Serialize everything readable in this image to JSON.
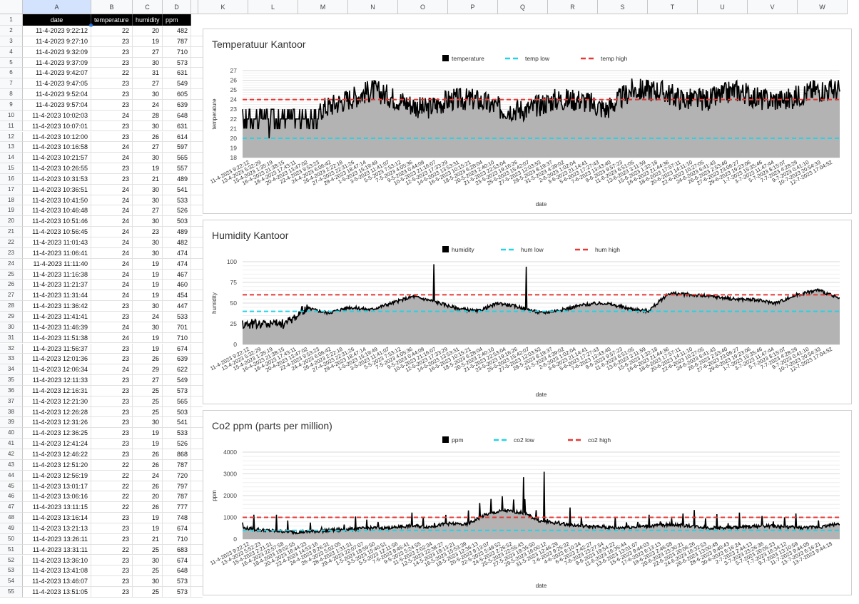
{
  "columns": {
    "letters_left": [
      "A",
      "B",
      "C",
      "D"
    ],
    "letters_right": [
      "K",
      "L",
      "M",
      "N",
      "O",
      "P",
      "Q",
      "R",
      "S",
      "T",
      "U",
      "V",
      "W"
    ]
  },
  "sheet": {
    "headers": [
      "date",
      "temperature",
      "humidity",
      "ppm"
    ],
    "rows": [
      [
        "11-4-2023 9:22:12",
        "22",
        "20",
        "482"
      ],
      [
        "11-4-2023 9:27:10",
        "23",
        "19",
        "787"
      ],
      [
        "11-4-2023 9:32:09",
        "23",
        "27",
        "710"
      ],
      [
        "11-4-2023 9:37:09",
        "23",
        "30",
        "573"
      ],
      [
        "11-4-2023 9:42:07",
        "22",
        "31",
        "631"
      ],
      [
        "11-4-2023 9:47:05",
        "23",
        "27",
        "549"
      ],
      [
        "11-4-2023 9:52:04",
        "23",
        "30",
        "605"
      ],
      [
        "11-4-2023 9:57:04",
        "23",
        "24",
        "639"
      ],
      [
        "11-4-2023 10:02:03",
        "24",
        "28",
        "648"
      ],
      [
        "11-4-2023 10:07:01",
        "23",
        "30",
        "631"
      ],
      [
        "11-4-2023 10:12:00",
        "23",
        "26",
        "614"
      ],
      [
        "11-4-2023 10:16:58",
        "24",
        "27",
        "597"
      ],
      [
        "11-4-2023 10:21:57",
        "24",
        "30",
        "565"
      ],
      [
        "11-4-2023 10:26:55",
        "23",
        "19",
        "557"
      ],
      [
        "11-4-2023 10:31:53",
        "23",
        "21",
        "489"
      ],
      [
        "11-4-2023 10:36:51",
        "24",
        "30",
        "541"
      ],
      [
        "11-4-2023 10:41:50",
        "24",
        "30",
        "533"
      ],
      [
        "11-4-2023 10:46:48",
        "24",
        "27",
        "526"
      ],
      [
        "11-4-2023 10:51:46",
        "24",
        "30",
        "503"
      ],
      [
        "11-4-2023 10:56:45",
        "24",
        "23",
        "489"
      ],
      [
        "11-4-2023 11:01:43",
        "24",
        "30",
        "482"
      ],
      [
        "11-4-2023 11:06:41",
        "24",
        "30",
        "474"
      ],
      [
        "11-4-2023 11:11:40",
        "24",
        "19",
        "474"
      ],
      [
        "11-4-2023 11:16:38",
        "24",
        "19",
        "467"
      ],
      [
        "11-4-2023 11:21:37",
        "24",
        "19",
        "460"
      ],
      [
        "11-4-2023 11:31:44",
        "24",
        "19",
        "454"
      ],
      [
        "11-4-2023 11:36:42",
        "23",
        "30",
        "447"
      ],
      [
        "11-4-2023 11:41:41",
        "23",
        "24",
        "533"
      ],
      [
        "11-4-2023 11:46:39",
        "24",
        "30",
        "701"
      ],
      [
        "11-4-2023 11:51:38",
        "24",
        "19",
        "710"
      ],
      [
        "11-4-2023 11:56:37",
        "23",
        "19",
        "674"
      ],
      [
        "11-4-2023 12:01:36",
        "23",
        "26",
        "639"
      ],
      [
        "11-4-2023 12:06:34",
        "24",
        "29",
        "622"
      ],
      [
        "11-4-2023 12:11:33",
        "23",
        "27",
        "549"
      ],
      [
        "11-4-2023 12:16:31",
        "23",
        "25",
        "573"
      ],
      [
        "11-4-2023 12:21:30",
        "23",
        "25",
        "565"
      ],
      [
        "11-4-2023 12:26:28",
        "23",
        "25",
        "503"
      ],
      [
        "11-4-2023 12:31:26",
        "23",
        "30",
        "541"
      ],
      [
        "11-4-2023 12:36:25",
        "23",
        "19",
        "533"
      ],
      [
        "11-4-2023 12:41:24",
        "23",
        "19",
        "526"
      ],
      [
        "11-4-2023 12:46:22",
        "23",
        "26",
        "868"
      ],
      [
        "11-4-2023 12:51:20",
        "22",
        "26",
        "787"
      ],
      [
        "11-4-2023 12:56:19",
        "22",
        "24",
        "720"
      ],
      [
        "11-4-2023 13:01:17",
        "22",
        "26",
        "797"
      ],
      [
        "11-4-2023 13:06:16",
        "22",
        "20",
        "787"
      ],
      [
        "11-4-2023 13:11:15",
        "22",
        "26",
        "777"
      ],
      [
        "11-4-2023 13:16:14",
        "23",
        "19",
        "748"
      ],
      [
        "11-4-2023 13:21:13",
        "23",
        "19",
        "674"
      ],
      [
        "11-4-2023 13:26:11",
        "23",
        "21",
        "710"
      ],
      [
        "11-4-2023 13:31:11",
        "22",
        "25",
        "683"
      ],
      [
        "11-4-2023 13:36:10",
        "23",
        "30",
        "674"
      ],
      [
        "11-4-2023 13:41:08",
        "23",
        "25",
        "648"
      ],
      [
        "11-4-2023 13:46:07",
        "23",
        "30",
        "573"
      ],
      [
        "11-4-2023 13:51:05",
        "23",
        "25",
        "573"
      ]
    ]
  },
  "chart_data": [
    {
      "type": "area",
      "title": "Temperatuur Kantoor",
      "xlabel": "date",
      "ylabel": "temperature",
      "ylim": [
        18,
        27
      ],
      "yticks": [
        18,
        19,
        20,
        21,
        22,
        23,
        24,
        25,
        26,
        27
      ],
      "legend": "top-center",
      "grid": true,
      "series": [
        {
          "name": "temperature",
          "color": "#000000",
          "trend": [
            22,
            22,
            22,
            23,
            24,
            25,
            24,
            23,
            24,
            24,
            23,
            23,
            24,
            24,
            23,
            25,
            25,
            24,
            24,
            25,
            24,
            24,
            25,
            25
          ],
          "noise": 1.2
        },
        {
          "name": "temp low",
          "color": "#22d3e6",
          "constant": 20
        },
        {
          "name": "temp high",
          "color": "#e53935",
          "constant": 24
        }
      ],
      "x_tick_labels": [
        "11-4-2023 9:22:12",
        "13-4-2023 5:32:29",
        "15-4-2023 1:35:19",
        "16-4-2023 21:38:15",
        "18-4-2023 17:43:11",
        "20-4-2023 13:47:02",
        "22-4-2023 9:53:23",
        "24-4-2023 6:06:42",
        "26-4-2023 2:22:18",
        "27-4-2023 22:31:26",
        "29-4-2023 18:47:14",
        "1-5-2023 15:19:49",
        "3-5-2023 11:41:07",
        "5-5-2023 7:53:12",
        "7-5-2023 4:05:36",
        "9-5-2023 0:44:09",
        "10-5-2023 21:16:07",
        "12-5-2023 17:33:29",
        "14-5-2023 13:53:31",
        "16-5-2023 10:15:21",
        "18-5-2023 6:28:04",
        "20-5-2023 2:40:10",
        "21-5-2023 22:53:04",
        "23-5-2023 19:16:26",
        "25-5-2023 15:42:07",
        "27-5-2023 12:03:53",
        "29-5-2023 8:19:37",
        "31-5-2023 4:39:02",
        "2-6-2023 1:02:04",
        "3-6-2023 21:14:41",
        "5-6-2023 17:27:43",
        "7-6-2023 13:43:40",
        "9-6-2023 9:57:23",
        "11-6-2023 6:51:05",
        "13-6-2023 3:11:59",
        "15-6-2023 1:32:18",
        "16-6-2023 21:44:36",
        "18-6-2023 17:57:11",
        "20-6-2023 14:11:10",
        "22-6-2023 10:27:05",
        "24-6-2023 6:41:43",
        "26-6-2023 2:53:40",
        "27-6-2023 23:06:27",
        "29-6-2023 19:23:06",
        "1-7-2023 15:35:46",
        "3-7-2023 11:47:44",
        "5-7-2023 8:15:07",
        "7-7-2023 4:28:29",
        "9-7-2023 0:41:10",
        "10-7-2023 20:54:33",
        "12-7-2023 17:04:52"
      ]
    },
    {
      "type": "area",
      "title": "Humidity Kantoor",
      "xlabel": "date",
      "ylabel": "humidity",
      "ylim": [
        0,
        100
      ],
      "yticks": [
        0,
        25,
        50,
        75,
        100
      ],
      "legend": "top-center",
      "grid": true,
      "series": [
        {
          "name": "humidity",
          "color": "#000000",
          "trend": [
            25,
            25,
            25,
            44,
            38,
            45,
            42,
            50,
            58,
            52,
            44,
            40,
            50,
            45,
            38,
            42,
            48,
            50,
            44,
            40,
            62,
            60,
            58,
            55,
            54,
            50,
            60,
            66,
            55
          ],
          "noise": 4
        },
        {
          "name": "hum low",
          "color": "#22d3e6",
          "constant": 40
        },
        {
          "name": "hum high",
          "color": "#e53935",
          "constant": 60
        }
      ],
      "x_tick_labels": [
        "11-4-2023 9:22:12",
        "13-4-2023 5:32:29",
        "15-4-2023 1:35:19",
        "16-4-2023 21:38:15",
        "18-4-2023 17:43:11",
        "20-4-2023 13:47:02",
        "22-4-2023 9:53:23",
        "24-4-2023 6:06:42",
        "26-4-2023 2:22:18",
        "27-4-2023 22:31:26",
        "29-4-2023 18:47:14",
        "1-5-2023 15:19:49",
        "3-5-2023 11:41:07",
        "5-5-2023 7:53:12",
        "7-5-2023 4:05:36",
        "9-5-2023 0:44:09",
        "10-5-2023 21:16:07",
        "12-5-2023 17:33:29",
        "14-5-2023 13:53:31",
        "16-5-2023 10:15:21",
        "18-5-2023 6:28:04",
        "20-5-2023 2:40:10",
        "21-5-2023 22:53:04",
        "23-5-2023 19:16:26",
        "25-5-2023 15:42:07",
        "27-5-2023 12:03:53",
        "29-5-2023 8:19:37",
        "31-5-2023 4:39:02",
        "2-6-2023 1:02:04",
        "3-6-2023 21:14:41",
        "5-6-2023 17:27:43",
        "7-6-2023 13:43:40",
        "9-6-2023 9:57:23",
        "11-6-2023 6:51:05",
        "13-6-2023 3:11:59",
        "15-6-2023 1:32:18",
        "16-6-2023 21:44:36",
        "18-6-2023 17:57:11",
        "20-6-2023 14:11:10",
        "22-6-2023 10:27:05",
        "24-6-2023 6:41:43",
        "26-6-2023 2:53:40",
        "27-6-2023 23:06:27",
        "29-6-2023 19:23:06",
        "1-7-2023 15:35:46",
        "3-7-2023 11:47:44",
        "5-7-2023 8:15:07",
        "7-7-2023 4:28:29",
        "9-7-2023 0:41:10",
        "10-7-2023 20:54:33",
        "12-7-2023 17:04:52"
      ]
    },
    {
      "type": "area",
      "title": "Co2 ppm (parts per million)",
      "xlabel": "date",
      "ylabel": "ppm",
      "ylim": [
        0,
        4000
      ],
      "yticks": [
        0,
        1000,
        2000,
        3000,
        4000
      ],
      "legend": "top-center",
      "grid": true,
      "series": [
        {
          "name": "ppm",
          "color": "#000000",
          "trend": [
            500,
            400,
            350,
            300,
            350,
            400,
            450,
            500,
            500,
            600,
            550,
            700,
            650,
            1100,
            1300,
            1200,
            800,
            700,
            600,
            550,
            500,
            550,
            600,
            650,
            600,
            500,
            500,
            550,
            600,
            550,
            500,
            550,
            700
          ],
          "noise": 300
        },
        {
          "name": "co2 low",
          "color": "#22d3e6",
          "constant": 400
        },
        {
          "name": "co2 high",
          "color": "#e53935",
          "constant": 1000
        }
      ],
      "x_tick_labels": [
        "11-4-2023 9:22:12",
        "13-4-2023 5:52:23",
        "15-4-2023 2:21:31",
        "16-4-2023 22:57:58",
        "18-4-2023 19:02:55",
        "20-4-2023 16:44:33",
        "22-4-2023 14:53:16",
        "24-4-2023 8:26:31",
        "26-4-2023 5:02:05",
        "28-4-2023 1:31:31",
        "29-4-2023 22:07:07",
        "1-5-2023 18:59:50",
        "3-5-2023 15:40:51",
        "5-5-2023 12:11:56",
        "7-5-2023 8:45:41",
        "9-5-2023 5:24:55",
        "11-5-2023 2:02:34",
        "12-5-2023 22:38:27",
        "14-5-2023 19:13:21",
        "16-5-2023 15:53:39",
        "18-5-2023 12:36:13",
        "20-5-2023 9:13:07",
        "22-5-2023 5:49:52",
        "24-5-2023 2:26:52",
        "25-5-2023 22:55:43",
        "27-5-2023 19:35:50",
        "29-5-2023 16:00:12",
        "31-5-2023 12:46:29",
        "2-6-2023 9:25:32",
        "4-6-2023 6:10:34",
        "6-6-2023 2:42:27",
        "7-6-2023 23:27:54",
        "9-6-2023 19:54:22",
        "11-6-2023 16:35:44",
        "13-6-2023 13:01:07",
        "15-6-2023 9:44:03",
        "17-6-2023 6:13:13",
        "19-6-2023 2:46:58",
        "20-6-2023 23:30:21",
        "22-6-2023 20:06:26",
        "24-6-2023 16:32:53",
        "26-6-2023 13:00:48",
        "28-6-2023 9:40:43",
        "30-6-2023 6:16:24",
        "2-7-2023 2:44:13",
        "3-7-2023 23:26:36",
        "5-7-2023 20:05:33",
        "7-7-2023 16:34:12",
        "9-7-2023 13:10:59",
        "11-7-2023 9:44:05",
        "13-7-2023 6:16:21",
        "13-7-2023 9:44:18"
      ]
    }
  ]
}
